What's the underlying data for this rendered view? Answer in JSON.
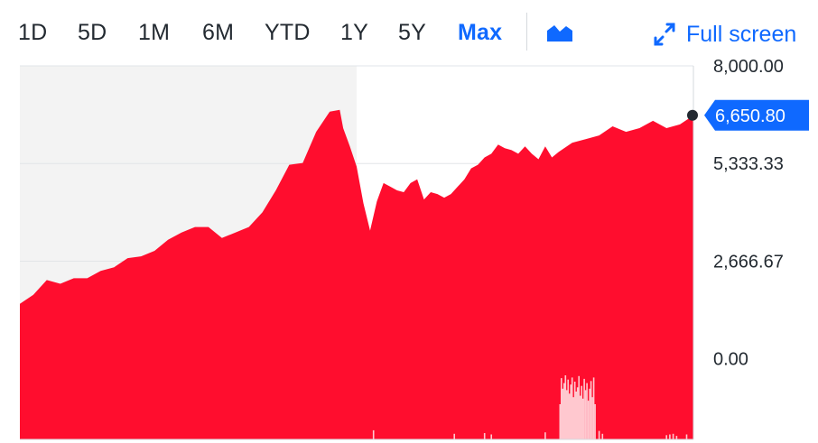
{
  "toolbar": {
    "ranges": [
      "1D",
      "5D",
      "1M",
      "6M",
      "YTD",
      "1Y",
      "5Y",
      "Max"
    ],
    "active_range": "Max",
    "chart_type_icon": "area-chart-icon",
    "fullscreen_icon": "expand-arrows-icon",
    "fullscreen_label": "Full screen"
  },
  "colors": {
    "accent": "#0f69ff",
    "area_fill": "#ff0d2e",
    "volume_bar": "#ffc8cf",
    "pre_period_background": "#f3f3f3"
  },
  "current_price": {
    "label": "6,650.80",
    "value": 6650.8
  },
  "chart_data": {
    "type": "area",
    "title": "",
    "xlabel": "",
    "ylabel": "",
    "ylim": [
      -2200,
      8000
    ],
    "y_tick_labels": [
      "8,000.00",
      "5,333.33",
      "2,666.67",
      "0.00"
    ],
    "y_ticks": [
      8000,
      5333.33,
      2666.67,
      0
    ],
    "grid": true,
    "x": [
      0,
      2,
      4,
      6,
      8,
      10,
      12,
      14,
      16,
      18,
      20,
      22,
      24,
      26,
      28,
      30,
      32,
      34,
      36,
      38,
      40,
      42,
      44,
      46,
      47.5,
      48,
      49,
      50,
      51,
      52,
      53,
      54,
      55,
      56,
      57,
      58,
      59,
      60,
      61,
      62,
      63,
      64,
      65,
      66,
      67,
      68,
      69,
      70,
      71,
      72,
      73,
      74,
      75,
      76,
      77,
      78,
      79,
      80,
      82,
      84,
      86,
      88,
      90,
      92,
      94,
      96,
      98,
      100
    ],
    "series": [
      {
        "values": [
          1500,
          1750,
          2150,
          2050,
          2200,
          2200,
          2400,
          2500,
          2750,
          2800,
          2950,
          3250,
          3450,
          3600,
          3600,
          3300,
          3450,
          3600,
          4000,
          4600,
          5300,
          5350,
          6200,
          6750,
          6800,
          6300,
          5800,
          5250,
          4250,
          3500,
          4300,
          4800,
          4700,
          4600,
          4550,
          4800,
          4900,
          4350,
          4550,
          4500,
          4400,
          4500,
          4700,
          4900,
          5200,
          5300,
          5500,
          5600,
          5850,
          5750,
          5700,
          5600,
          5800,
          5600,
          5450,
          5800,
          5500,
          5650,
          5900,
          6000,
          6100,
          6350,
          6200,
          6300,
          6500,
          6300,
          6400,
          6650.8
        ]
      }
    ],
    "volume": {
      "x": [
        52.5,
        64.5,
        69,
        70,
        78,
        80.2,
        80.4,
        80.6,
        80.8,
        81,
        81.2,
        81.4,
        81.6,
        81.8,
        82,
        82.2,
        82.4,
        82.6,
        82.8,
        83,
        83.2,
        83.4,
        83.6,
        83.8,
        84,
        84.2,
        84.4,
        84.6,
        84.8,
        85,
        85.2,
        85.4,
        86,
        86.5,
        96,
        96.5,
        97,
        97.5,
        99
      ],
      "values": [
        0.13,
        0.08,
        0.09,
        0.07,
        0.1,
        0.5,
        0.87,
        0.72,
        0.8,
        0.91,
        0.7,
        0.85,
        0.65,
        0.78,
        0.88,
        0.6,
        0.82,
        0.68,
        0.74,
        0.9,
        0.62,
        0.76,
        0.58,
        0.86,
        0.7,
        0.8,
        0.55,
        0.72,
        0.83,
        0.6,
        0.88,
        0.5,
        0.12,
        0.08,
        0.06,
        0.07,
        0.08,
        0.05,
        0.07
      ]
    },
    "highlight_start_x": 50
  }
}
